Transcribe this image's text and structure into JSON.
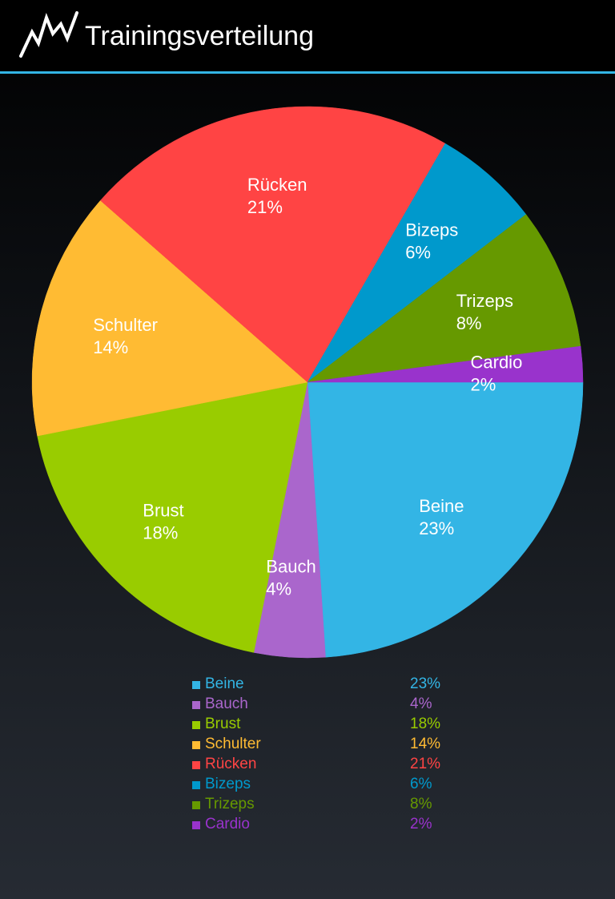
{
  "header": {
    "title": "Trainingsverteilung",
    "logo_icon": "zigzag-graph-icon",
    "divider_color": "#33b5e5"
  },
  "chart_data": {
    "type": "pie",
    "slices": [
      {
        "label": "Beine",
        "percent_label": "23%",
        "value": 23,
        "color": "#33b5e5"
      },
      {
        "label": "Bauch",
        "percent_label": "4%",
        "value": 4,
        "color": "#aa66cc"
      },
      {
        "label": "Brust",
        "percent_label": "18%",
        "value": 18,
        "color": "#99cc00"
      },
      {
        "label": "Schulter",
        "percent_label": "14%",
        "value": 14,
        "color": "#ffbb33"
      },
      {
        "label": "Rücken",
        "percent_label": "21%",
        "value": 21,
        "color": "#ff4444"
      },
      {
        "label": "Bizeps",
        "percent_label": "6%",
        "value": 6,
        "color": "#0099cc"
      },
      {
        "label": "Trizeps",
        "percent_label": "8%",
        "value": 8,
        "color": "#669900"
      },
      {
        "label": "Cardio",
        "percent_label": "2%",
        "value": 2,
        "color": "#9933cc"
      }
    ]
  }
}
